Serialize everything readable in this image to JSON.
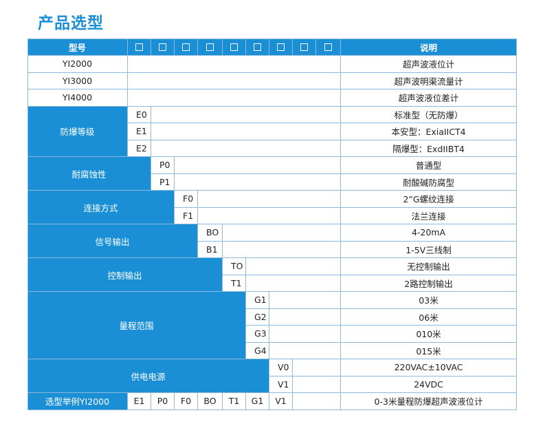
{
  "page_title": "产品选型",
  "header": {
    "model_label": "型号",
    "desc_label": "说明"
  },
  "models": [
    {
      "name": "YI2000",
      "desc": "超声波液位计"
    },
    {
      "name": "YI3000",
      "desc": "超声波明渠流量计"
    },
    {
      "name": "YI4000",
      "desc": "超声波液位差计"
    }
  ],
  "groups": [
    {
      "label": "防爆等级",
      "options": [
        {
          "code": "E0",
          "desc": "标准型（无防爆）"
        },
        {
          "code": "E1",
          "desc": "本安型：ExiaIICT4"
        },
        {
          "code": "E2",
          "desc": "隔爆型：ExdIIBT4"
        }
      ]
    },
    {
      "label": "耐腐蚀性",
      "options": [
        {
          "code": "P0",
          "desc": "普通型"
        },
        {
          "code": "P1",
          "desc": "耐酸碱防腐型"
        }
      ]
    },
    {
      "label": "连接方式",
      "options": [
        {
          "code": "F0",
          "desc": "2”G螺纹连接"
        },
        {
          "code": "F1",
          "desc": "法兰连接"
        }
      ]
    },
    {
      "label": "信号输出",
      "options": [
        {
          "code": "BO",
          "desc": "4-20mA"
        },
        {
          "code": "B1",
          "desc": "1-5V三线制"
        }
      ]
    },
    {
      "label": "控制输出",
      "options": [
        {
          "code": "TO",
          "desc": "无控制输出"
        },
        {
          "code": "T1",
          "desc": "2路控制输出"
        }
      ]
    },
    {
      "label": "量程范围",
      "options": [
        {
          "code": "G1",
          "desc": "03米"
        },
        {
          "code": "G2",
          "desc": "06米"
        },
        {
          "code": "G3",
          "desc": "010米"
        },
        {
          "code": "G4",
          "desc": "015米"
        }
      ]
    },
    {
      "label": "供电电源",
      "options": [
        {
          "code": "V0",
          "desc": "220VAC±10VAC"
        },
        {
          "code": "V1",
          "desc": "24VDC"
        }
      ]
    }
  ],
  "example": {
    "label": "选型举例YI2000",
    "codes": [
      "E1",
      "P0",
      "F0",
      "BO",
      "T1",
      "G1",
      "V1"
    ],
    "desc": "0-3米量程防爆超声波液位计"
  }
}
